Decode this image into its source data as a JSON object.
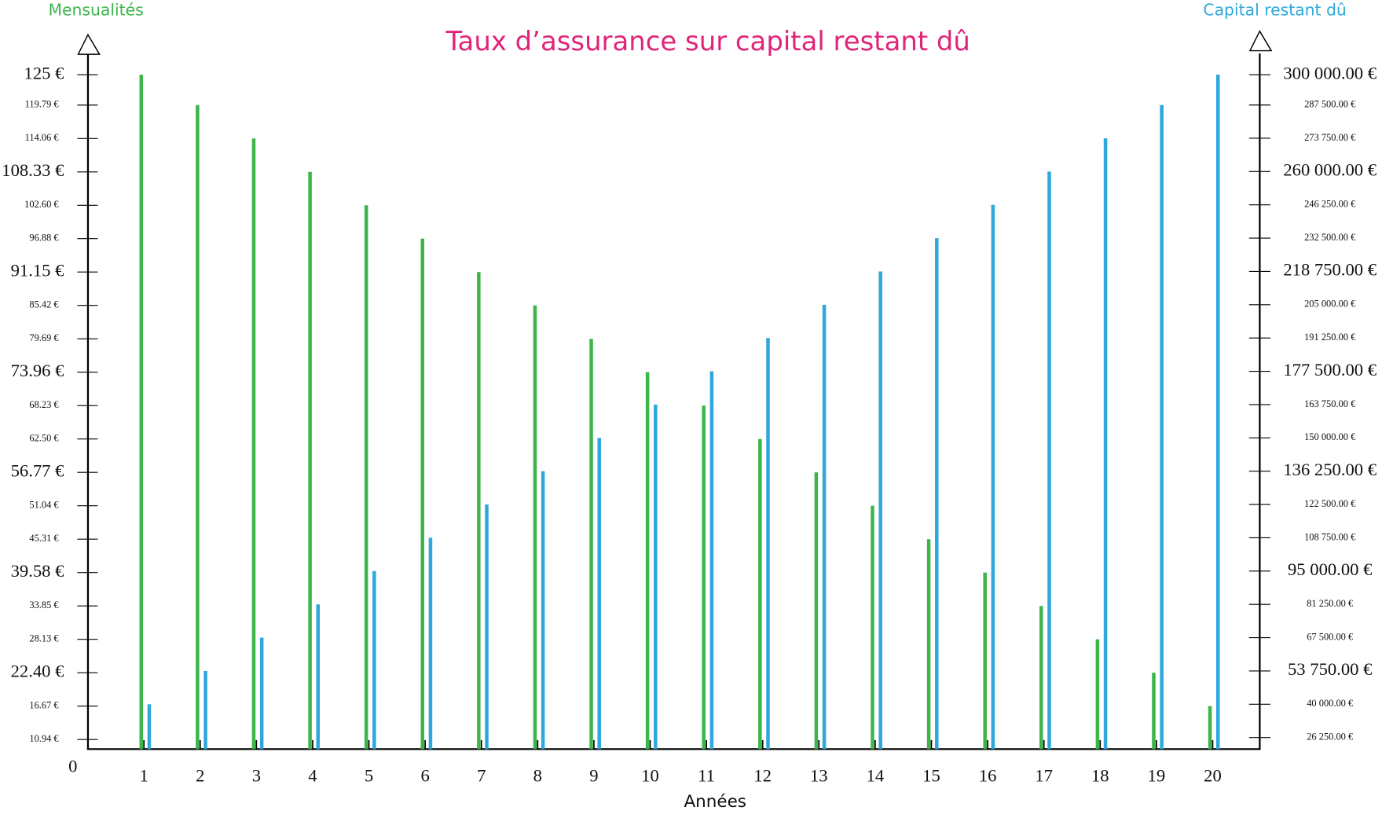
{
  "chart_data": {
    "type": "bar",
    "title": "Taux d’assurance sur capital restant dû",
    "x_label": "Années",
    "origin_label": "0",
    "categories": [
      "1",
      "2",
      "3",
      "4",
      "5",
      "6",
      "7",
      "8",
      "9",
      "10",
      "11",
      "12",
      "13",
      "14",
      "15",
      "16",
      "17",
      "18",
      "19",
      "20"
    ],
    "series": [
      {
        "name": "Mensualités",
        "color": "#3cb54a",
        "values": [
          125,
          119.79,
          114.06,
          108.33,
          102.6,
          96.88,
          91.15,
          85.42,
          79.69,
          73.96,
          68.23,
          62.5,
          56.77,
          51.04,
          45.31,
          39.58,
          33.85,
          28.13,
          22.4,
          16.67
        ]
      },
      {
        "name": "Capital restant dû",
        "color": "#2ea8dc",
        "axis": "y2",
        "values": [
          40000,
          53750,
          67500,
          81250,
          95000,
          108750,
          122500,
          136250,
          150000,
          163750,
          177500,
          191250,
          205000,
          218750,
          232500,
          246250,
          260000,
          273750,
          287500,
          300000
        ]
      }
    ],
    "title_color": "#e0247a",
    "ylim": [
      9.3,
      125
    ],
    "yticks": [
      {
        "value": 10.94,
        "label": "10.94 €"
      },
      {
        "value": 16.67,
        "label": "16.67 €"
      },
      {
        "value": 22.4,
        "label": "22.40 €"
      },
      {
        "value": 28.13,
        "label": "28.13 €"
      },
      {
        "value": 33.85,
        "label": "33.85 €"
      },
      {
        "value": 39.58,
        "label": "39.58 €"
      },
      {
        "value": 45.31,
        "label": "45.31 €"
      },
      {
        "value": 51.04,
        "label": "51.04 €"
      },
      {
        "value": 56.77,
        "label": "56.77 €"
      },
      {
        "value": 62.5,
        "label": "62.50 €"
      },
      {
        "value": 68.23,
        "label": "68.23 €"
      },
      {
        "value": 73.96,
        "label": "73.96 €"
      },
      {
        "value": 79.69,
        "label": "79.69 €"
      },
      {
        "value": 85.42,
        "label": "85.42 €"
      },
      {
        "value": 91.15,
        "label": "91.15 €"
      },
      {
        "value": 96.88,
        "label": "96.88 €"
      },
      {
        "value": 102.6,
        "label": "102.60 €"
      },
      {
        "value": 108.33,
        "label": "108.33 €"
      },
      {
        "value": 114.06,
        "label": "114.06 €"
      },
      {
        "value": 119.79,
        "label": "119.79 €"
      },
      {
        "value": 125,
        "label": "125 €"
      }
    ],
    "y2lim": [
      21500,
      300000
    ],
    "y2ticks": [
      {
        "value": 26250,
        "label": "26 250.00 €"
      },
      {
        "value": 40000,
        "label": "40 000.00 €"
      },
      {
        "value": 53750,
        "label": "53 750.00 €"
      },
      {
        "value": 67500,
        "label": "67 500.00 €"
      },
      {
        "value": 81250,
        "label": "81 250.00 €"
      },
      {
        "value": 95000,
        "label": "95 000.00 €"
      },
      {
        "value": 108750,
        "label": "108 750.00 €"
      },
      {
        "value": 122500,
        "label": "122 500.00 €"
      },
      {
        "value": 136250,
        "label": "136 250.00 €"
      },
      {
        "value": 150000,
        "label": "150 000.00 €"
      },
      {
        "value": 163750,
        "label": "163 750.00 €"
      },
      {
        "value": 177500,
        "label": "177 500.00 €"
      },
      {
        "value": 191250,
        "label": "191 250.00 €"
      },
      {
        "value": 205000,
        "label": "205 000.00 €"
      },
      {
        "value": 218750,
        "label": "218 750.00 €"
      },
      {
        "value": 232500,
        "label": "232 500.00 €"
      },
      {
        "value": 246250,
        "label": "246 250.00 €"
      },
      {
        "value": 260000,
        "label": "260 000.00 €"
      },
      {
        "value": 273750,
        "label": "273 750.00 €"
      },
      {
        "value": 287500,
        "label": "287 500.00 €"
      },
      {
        "value": 300000,
        "label": "300 000.00 €"
      }
    ]
  }
}
